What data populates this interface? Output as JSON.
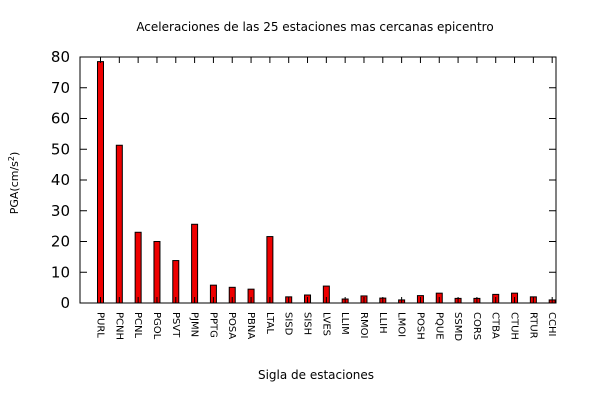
{
  "chart_data": {
    "type": "bar",
    "title": "Aceleraciones de las 25 estaciones mas cercanas epicentro",
    "xlabel": "Sigla de estaciones",
    "ylabel": "PGA(cm/s",
    "ylabel_sup": "2",
    "ylabel_close": ")",
    "ylim": [
      0,
      80
    ],
    "yticks": [
      0,
      10,
      20,
      30,
      40,
      50,
      60,
      70,
      80
    ],
    "grid": false,
    "bar_color": "#ee0000",
    "categories": [
      "PURL",
      "PCNH",
      "PCNL",
      "PGOL",
      "PSVT",
      "PJMN",
      "PPTG",
      "POSA",
      "PBNA",
      "LTAL",
      "SISD",
      "SISH",
      "LVES",
      "LLIM",
      "RMOI",
      "LLIH",
      "LMOI",
      "POSH",
      "PQUE",
      "SSMD",
      "CORS",
      "CTBA",
      "CTUH",
      "RTUR",
      "CCHI"
    ],
    "values": [
      78.5,
      51.3,
      23.0,
      20.0,
      13.8,
      25.6,
      5.8,
      5.1,
      4.5,
      21.6,
      2.0,
      2.6,
      5.5,
      1.3,
      2.3,
      1.6,
      1.0,
      2.4,
      3.2,
      1.5,
      1.5,
      2.8,
      3.2,
      2.0,
      1.0
    ]
  }
}
